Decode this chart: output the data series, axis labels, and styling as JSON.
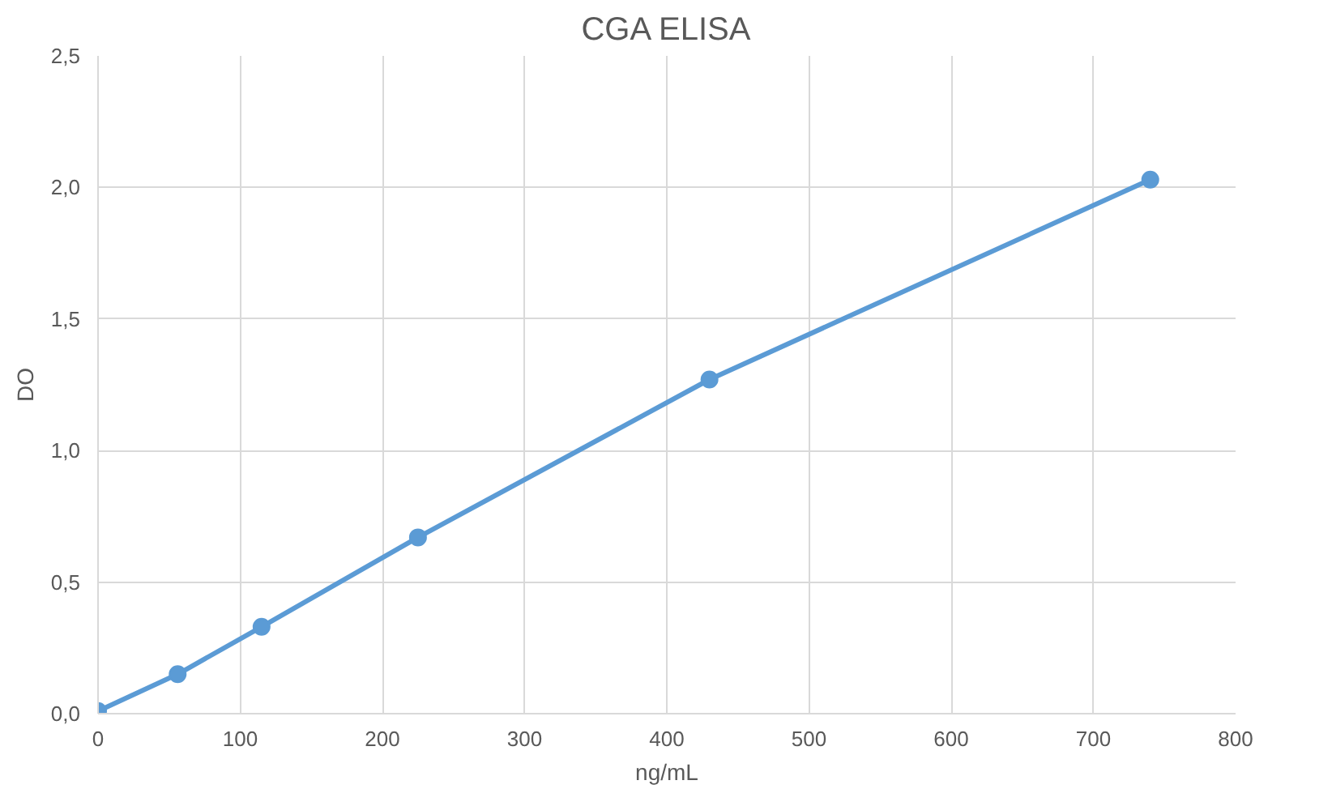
{
  "chart_data": {
    "type": "line",
    "title": "CGA ELISA",
    "xlabel": "ng/mL",
    "ylabel": "DO",
    "x": [
      0,
      56,
      115,
      225,
      430,
      740
    ],
    "series": [
      {
        "color": "#5b9bd5",
        "values": [
          0.01,
          0.15,
          0.33,
          0.67,
          1.27,
          2.03
        ]
      }
    ],
    "xlim": [
      0,
      800
    ],
    "xticks": [
      0,
      100,
      200,
      300,
      400,
      500,
      600,
      700,
      800
    ],
    "ylim": [
      0,
      2.5
    ],
    "yticks": [
      {
        "value": 0,
        "label": "0,0"
      },
      {
        "value": 0.5,
        "label": "0,5"
      },
      {
        "value": 1,
        "label": "1,0"
      },
      {
        "value": 1.5,
        "label": "1,5"
      },
      {
        "value": 2,
        "label": "2,0"
      },
      {
        "value": 2.5,
        "label": "2,5"
      }
    ],
    "grid": true,
    "marker": "circle",
    "line_style": "solid"
  }
}
